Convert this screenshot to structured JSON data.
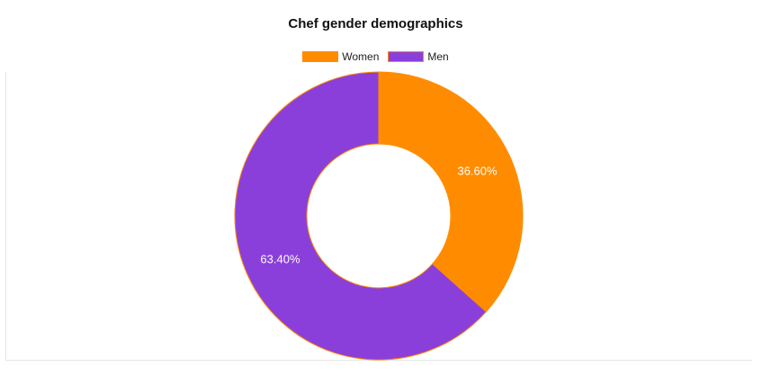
{
  "chart_data": {
    "type": "pie",
    "title": "Chef gender demographics",
    "categories": [
      "Women",
      "Men"
    ],
    "values": [
      36.6,
      63.4
    ],
    "labels": [
      "36.60%",
      "63.40%"
    ],
    "colors": [
      "#ff8c00",
      "#8a3fdb"
    ],
    "border_color": "#ff8c00",
    "legend_position": "top",
    "donut": true
  }
}
